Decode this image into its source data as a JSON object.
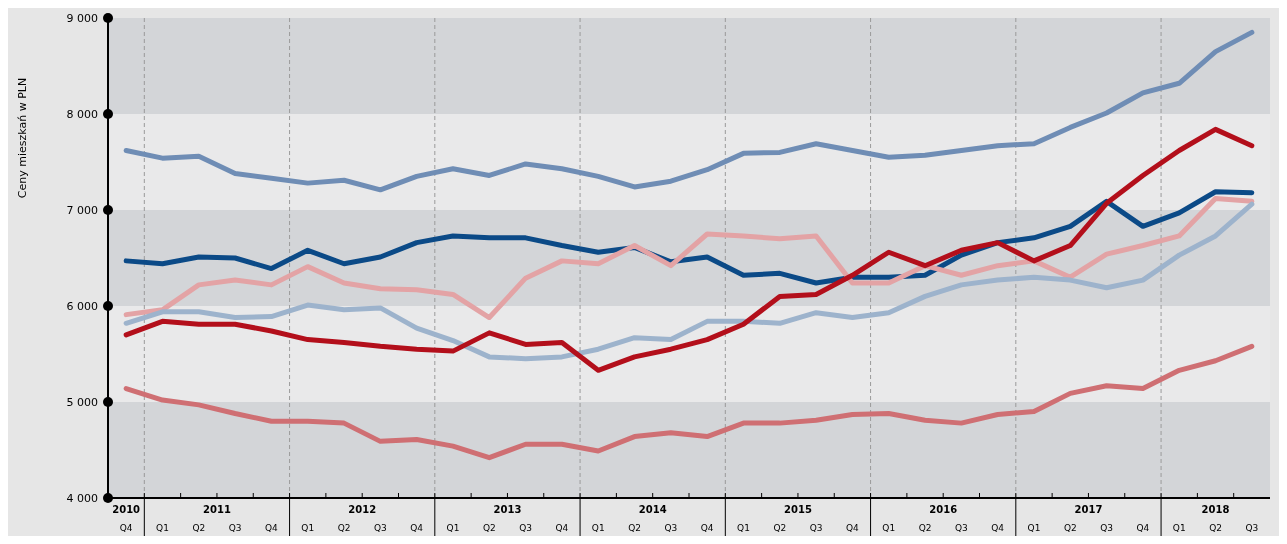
{
  "chart_data": {
    "type": "line",
    "ylabel": "Ceny mieszkań w PLN",
    "categories": [
      "Q4",
      "Q1",
      "Q2",
      "Q3",
      "Q4",
      "Q1",
      "Q2",
      "Q3",
      "Q4",
      "Q1",
      "Q2",
      "Q3",
      "Q4",
      "Q1",
      "Q2",
      "Q3",
      "Q4",
      "Q1",
      "Q2",
      "Q3",
      "Q4",
      "Q1",
      "Q2",
      "Q3",
      "Q4",
      "Q1",
      "Q2",
      "Q3",
      "Q4",
      "Q1",
      "Q2",
      "Q3"
    ],
    "annotations": [
      "2010",
      "2011",
      "2012",
      "2013",
      "2014",
      "2015",
      "2016",
      "2017",
      "2018"
    ],
    "series": [
      {
        "color": "#6f8db5",
        "values": [
          7620,
          7540,
          7560,
          7380,
          7330,
          7280,
          7310,
          7210,
          7350,
          7430,
          7360,
          7480,
          7430,
          7350,
          7240,
          7300,
          7420,
          7590,
          7600,
          7690,
          7620,
          7550,
          7570,
          7620,
          7670,
          7690,
          7860,
          8010,
          8220,
          8320,
          8650,
          8850
        ]
      },
      {
        "color": "#0b4a87",
        "values": [
          6470,
          6440,
          6510,
          6500,
          6390,
          6580,
          6440,
          6510,
          6660,
          6730,
          6710,
          6710,
          6630,
          6560,
          6610,
          6460,
          6510,
          6320,
          6340,
          6240,
          6300,
          6300,
          6320,
          6530,
          6660,
          6710,
          6830,
          7090,
          6830,
          6970,
          7190,
          7180
        ]
      },
      {
        "color": "#e3a3a5",
        "values": [
          5910,
          5960,
          6220,
          6270,
          6220,
          6410,
          6240,
          6180,
          6170,
          6120,
          5880,
          6290,
          6470,
          6440,
          6630,
          6420,
          6750,
          6730,
          6700,
          6730,
          6240,
          6240,
          6420,
          6320,
          6420,
          6470,
          6300,
          6540,
          6630,
          6730,
          7120,
          7090
        ]
      },
      {
        "color": "#9db3cc",
        "values": [
          5820,
          5940,
          5940,
          5880,
          5890,
          6010,
          5960,
          5980,
          5770,
          5640,
          5470,
          5450,
          5470,
          5550,
          5670,
          5650,
          5840,
          5840,
          5820,
          5930,
          5880,
          5930,
          6100,
          6220,
          6270,
          6300,
          6270,
          6190,
          6270,
          6530,
          6730,
          7060
        ]
      },
      {
        "color": "#b30f1b",
        "values": [
          5700,
          5840,
          5810,
          5810,
          5740,
          5650,
          5620,
          5580,
          5550,
          5530,
          5720,
          5600,
          5620,
          5330,
          5470,
          5550,
          5650,
          5810,
          6100,
          6120,
          6320,
          6560,
          6420,
          6580,
          6660,
          6470,
          6630,
          7070,
          7360,
          7620,
          7840,
          7670
        ]
      },
      {
        "color": "#cf6f73",
        "values": [
          5140,
          5020,
          4970,
          4880,
          4800,
          4800,
          4780,
          4590,
          4610,
          4540,
          4420,
          4560,
          4560,
          4490,
          4640,
          4680,
          4640,
          4780,
          4780,
          4810,
          4870,
          4880,
          4810,
          4780,
          4870,
          4900,
          5090,
          5170,
          5140,
          5330,
          5430,
          5580
        ]
      }
    ],
    "ylim": [
      4000,
      9000
    ],
    "yticks": [
      {
        "value": 4000,
        "label": "4 000"
      },
      {
        "value": 5000,
        "label": "5 000"
      },
      {
        "value": 6000,
        "label": "6 000"
      },
      {
        "value": 7000,
        "label": "7 000"
      },
      {
        "value": 8000,
        "label": "8 000"
      },
      {
        "value": 9000,
        "label": "9 000"
      }
    ],
    "grid": true
  }
}
